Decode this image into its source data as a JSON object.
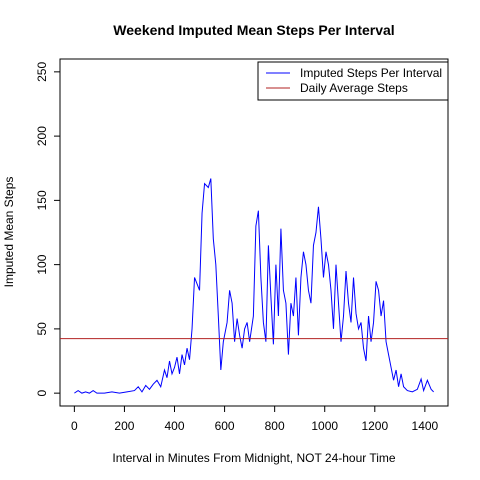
{
  "chart_data": {
    "type": "line",
    "title": "Weekend Imputed Mean Steps Per Interval",
    "x_label": "Interval in Minutes From Midnight, NOT 24-hour Time",
    "y_label": "Imputed Mean Steps",
    "x": [
      0,
      15,
      30,
      45,
      60,
      75,
      90,
      120,
      150,
      180,
      210,
      240,
      255,
      270,
      285,
      300,
      315,
      330,
      345,
      360,
      370,
      380,
      390,
      400,
      410,
      420,
      430,
      440,
      450,
      460,
      470,
      480,
      500,
      510,
      520,
      535,
      545,
      555,
      565,
      575,
      585,
      595,
      610,
      620,
      630,
      640,
      650,
      660,
      670,
      680,
      690,
      700,
      715,
      725,
      735,
      745,
      755,
      765,
      775,
      785,
      795,
      805,
      815,
      825,
      835,
      845,
      855,
      865,
      875,
      885,
      895,
      905,
      915,
      925,
      935,
      945,
      955,
      965,
      975,
      985,
      995,
      1005,
      1015,
      1025,
      1035,
      1045,
      1055,
      1065,
      1075,
      1085,
      1095,
      1105,
      1115,
      1125,
      1135,
      1145,
      1155,
      1165,
      1175,
      1185,
      1195,
      1205,
      1215,
      1225,
      1235,
      1245,
      1255,
      1265,
      1275,
      1285,
      1295,
      1305,
      1315,
      1330,
      1350,
      1370,
      1385,
      1395,
      1410,
      1425,
      1435
    ],
    "series": [
      {
        "name": "Imputed Steps Per Interval",
        "color": "#0000ff",
        "values": [
          0,
          2,
          0,
          1,
          0,
          2,
          0,
          0,
          1,
          0,
          1,
          2,
          5,
          1,
          6,
          3,
          7,
          10,
          5,
          18,
          12,
          25,
          15,
          20,
          28,
          15,
          30,
          22,
          35,
          26,
          50,
          90,
          80,
          140,
          163,
          160,
          167,
          120,
          100,
          60,
          18,
          40,
          55,
          80,
          70,
          40,
          58,
          45,
          35,
          50,
          55,
          40,
          60,
          130,
          142,
          90,
          55,
          40,
          115,
          75,
          38,
          100,
          60,
          128,
          80,
          70,
          30,
          70,
          60,
          90,
          45,
          90,
          110,
          100,
          80,
          70,
          115,
          125,
          145,
          120,
          90,
          110,
          100,
          80,
          50,
          100,
          70,
          40,
          60,
          95,
          70,
          55,
          90,
          62,
          50,
          55,
          35,
          25,
          60,
          40,
          55,
          87,
          80,
          60,
          72,
          40,
          30,
          20,
          10,
          18,
          5,
          15,
          5,
          2,
          1,
          3,
          11,
          2,
          10,
          3,
          1
        ]
      }
    ],
    "hlines": [
      {
        "name": "Daily Average Steps",
        "color": "#b22222",
        "value": 42.4
      }
    ],
    "xlim": [
      -57.4,
      1492.4
    ],
    "xticks": [
      0,
      200,
      400,
      600,
      800,
      1000,
      1200,
      1400
    ],
    "ylim": [
      -10,
      260
    ],
    "yticks": [
      0,
      50,
      100,
      150,
      200,
      250
    ],
    "legend": "top-right"
  }
}
